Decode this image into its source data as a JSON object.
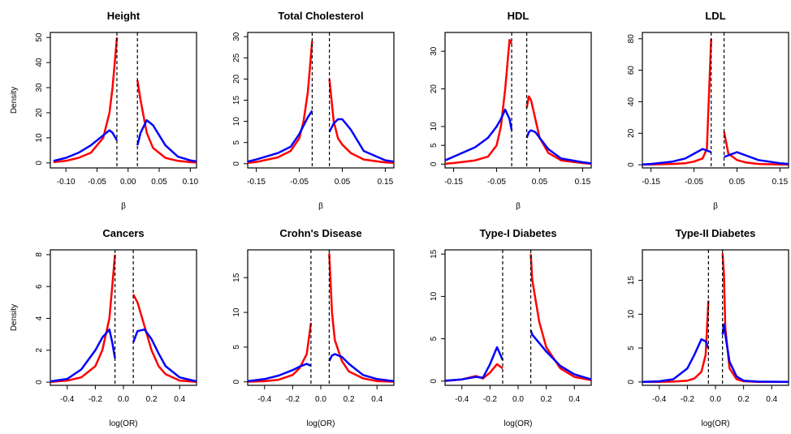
{
  "chart_data": [
    {
      "type": "line",
      "title": "Height",
      "xlabel": "β",
      "ylabel": "Density",
      "x": [
        -0.12,
        -0.1,
        -0.08,
        -0.06,
        -0.04,
        -0.03,
        -0.025,
        -0.018,
        0,
        0.015,
        0.02,
        0.03,
        0.04,
        0.06,
        0.08,
        0.1,
        0.11
      ],
      "series": [
        {
          "color": "#ff0000",
          "values": [
            0.3,
            0.8,
            2,
            4,
            10,
            20,
            30,
            50,
            null,
            33,
            25,
            12,
            6,
            2,
            0.8,
            0.3,
            0.2
          ]
        },
        {
          "color": "#0000ff",
          "values": [
            0.8,
            2,
            4,
            7,
            11,
            13,
            12,
            9,
            null,
            7,
            12,
            17,
            15,
            7,
            2.5,
            1,
            0.6
          ]
        }
      ],
      "xlim": [
        -0.125,
        0.11
      ],
      "xticks": [
        {
          "value": -0.1,
          "label": "-0.10"
        },
        -0.05,
        {
          "value": 0,
          "label": "0.00"
        },
        0.05,
        {
          "value": 0.1,
          "label": "0.10"
        }
      ],
      "ylim": [
        -2,
        52
      ],
      "yticks": [
        0,
        10,
        20,
        30,
        40,
        50
      ],
      "vlines": [
        -0.018,
        0.015
      ]
    },
    {
      "type": "line",
      "title": "Total Cholesterol",
      "xlabel": "β",
      "x": [
        -0.17,
        -0.15,
        -0.1,
        -0.07,
        -0.05,
        -0.04,
        -0.03,
        -0.02,
        0,
        0.02,
        0.03,
        0.04,
        0.05,
        0.07,
        0.1,
        0.15,
        0.17
      ],
      "series": [
        {
          "color": "#ff0000",
          "values": [
            0.2,
            0.4,
            1.5,
            3,
            6,
            10,
            17,
            29,
            null,
            20,
            10,
            6,
            4.5,
            2.5,
            1,
            0.3,
            0.2
          ]
        },
        {
          "color": "#0000ff",
          "values": [
            0.5,
            1,
            2.5,
            4,
            7,
            9,
            11,
            12.5,
            null,
            7.5,
            9.5,
            10.5,
            10.5,
            8,
            3,
            0.8,
            0.5
          ]
        }
      ],
      "xlim": [
        -0.17,
        0.17
      ],
      "xticks": [
        -0.15,
        -0.05,
        0.05,
        0.15
      ],
      "ylim": [
        -1,
        31
      ],
      "yticks": [
        0,
        5,
        10,
        15,
        20,
        25,
        30
      ],
      "vlines": [
        -0.02,
        0.02
      ]
    },
    {
      "type": "line",
      "title": "HDL",
      "xlabel": "β",
      "x": [
        -0.17,
        -0.15,
        -0.1,
        -0.07,
        -0.05,
        -0.04,
        -0.03,
        -0.02,
        -0.015,
        0,
        0.02,
        0.025,
        0.03,
        0.04,
        0.05,
        0.07,
        0.1,
        0.15,
        0.17
      ],
      "series": [
        {
          "color": "#ff0000",
          "values": [
            0.1,
            0.3,
            1,
            2,
            5,
            10,
            20,
            33,
            32,
            null,
            15,
            18,
            17,
            12,
            7,
            3,
            1,
            0.3,
            0.1
          ]
        },
        {
          "color": "#0000ff",
          "values": [
            1,
            2,
            4.5,
            7,
            10,
            12,
            14.5,
            12,
            9,
            null,
            7,
            8.5,
            9,
            8.5,
            7,
            4,
            1.5,
            0.5,
            0.2
          ]
        }
      ],
      "xlim": [
        -0.17,
        0.17
      ],
      "xticks": [
        -0.15,
        -0.05,
        0.05,
        0.15
      ],
      "ylim": [
        -1,
        35
      ],
      "yticks": [
        0,
        5,
        10,
        20,
        30
      ],
      "vlines": [
        -0.015,
        0.02
      ]
    },
    {
      "type": "line",
      "title": "LDL",
      "xlabel": "β",
      "x": [
        -0.17,
        -0.15,
        -0.1,
        -0.07,
        -0.05,
        -0.03,
        -0.02,
        -0.01,
        0,
        0.02,
        0.03,
        0.05,
        0.07,
        0.1,
        0.15,
        0.17
      ],
      "series": [
        {
          "color": "#ff0000",
          "values": [
            0.1,
            0.2,
            0.5,
            1,
            2,
            4,
            10,
            80,
            null,
            21,
            7,
            3,
            1.5,
            0.5,
            0.2,
            0.1
          ]
        },
        {
          "color": "#0000ff",
          "values": [
            0.2,
            0.5,
            2,
            4,
            7,
            10,
            9,
            8,
            null,
            5,
            6,
            8,
            6,
            3,
            1,
            0.5
          ]
        }
      ],
      "xlim": [
        -0.17,
        0.17
      ],
      "xticks": [
        -0.15,
        -0.05,
        0.05,
        0.15
      ],
      "ylim": [
        -2,
        84
      ],
      "yticks": [
        0,
        20,
        40,
        60,
        80
      ],
      "vlines": [
        -0.01,
        0.02
      ]
    },
    {
      "type": "line",
      "title": "Cancers",
      "xlabel": "log(OR)",
      "ylabel": "Density",
      "x": [
        -0.52,
        -0.4,
        -0.3,
        -0.2,
        -0.15,
        -0.1,
        -0.08,
        -0.06,
        0,
        0.07,
        0.1,
        0.15,
        0.2,
        0.25,
        0.3,
        0.4,
        0.52
      ],
      "series": [
        {
          "color": "#ff0000",
          "values": [
            0.02,
            0.1,
            0.3,
            1,
            2,
            4,
            6,
            8,
            null,
            5.5,
            5,
            3.5,
            2,
            1,
            0.5,
            0.1,
            0.02
          ]
        },
        {
          "color": "#0000ff",
          "values": [
            0.05,
            0.2,
            0.8,
            2,
            2.8,
            3.3,
            2.5,
            1.5,
            null,
            2.5,
            3.2,
            3.3,
            2.7,
            1.8,
            1,
            0.3,
            0.05
          ]
        }
      ],
      "xlim": [
        -0.52,
        0.52
      ],
      "xticks": [
        -0.4,
        -0.2,
        {
          "value": 0,
          "label": "0.0"
        },
        0.2,
        0.4
      ],
      "ylim": [
        -0.2,
        8.3
      ],
      "yticks": [
        0,
        2,
        4,
        6,
        8
      ],
      "vlines": [
        -0.06,
        0.07
      ]
    },
    {
      "type": "line",
      "title": "Crohn's Disease",
      "xlabel": "log(OR)",
      "x": [
        -0.52,
        -0.4,
        -0.3,
        -0.2,
        -0.15,
        -0.1,
        -0.07,
        0,
        0.06,
        0.08,
        0.1,
        0.15,
        0.2,
        0.3,
        0.4,
        0.52
      ],
      "series": [
        {
          "color": "#ff0000",
          "values": [
            0.02,
            0.1,
            0.3,
            1,
            2,
            4,
            8.5,
            null,
            18.5,
            10,
            6,
            3,
            1.5,
            0.5,
            0.1,
            0.02
          ]
        },
        {
          "color": "#0000ff",
          "values": [
            0.1,
            0.4,
            0.9,
            1.7,
            2.2,
            2.6,
            2.3,
            null,
            3,
            3.8,
            4,
            3.6,
            2.6,
            1,
            0.4,
            0.1
          ]
        }
      ],
      "xlim": [
        -0.52,
        0.52
      ],
      "xticks": [
        -0.4,
        -0.2,
        {
          "value": 0,
          "label": "0.0"
        },
        0.2,
        0.4
      ],
      "ylim": [
        -0.5,
        19
      ],
      "yticks": [
        0,
        5,
        10,
        15
      ],
      "vlines": [
        -0.07,
        0.06
      ]
    },
    {
      "type": "line",
      "title": "Type-I Diabetes",
      "xlabel": "log(OR)",
      "x": [
        -0.52,
        -0.4,
        -0.3,
        -0.25,
        -0.2,
        -0.15,
        -0.11,
        0,
        0.09,
        0.1,
        0.15,
        0.2,
        0.3,
        0.4,
        0.52
      ],
      "series": [
        {
          "color": "#ff0000",
          "values": [
            0.02,
            0.2,
            0.6,
            0.3,
            1,
            2,
            1.5,
            null,
            15,
            12,
            7,
            4,
            1.5,
            0.5,
            0.1
          ]
        },
        {
          "color": "#0000ff",
          "values": [
            0.05,
            0.2,
            0.5,
            0.4,
            2,
            4,
            2.5,
            null,
            6,
            5.5,
            4.5,
            3.5,
            1.8,
            0.8,
            0.2
          ]
        }
      ],
      "xlim": [
        -0.52,
        0.52
      ],
      "xticks": [
        -0.4,
        -0.2,
        {
          "value": 0,
          "label": "0.0"
        },
        0.2,
        0.4
      ],
      "ylim": [
        -0.5,
        15.5
      ],
      "yticks": [
        0,
        5,
        10,
        15
      ],
      "vlines": [
        -0.11,
        0.09
      ]
    },
    {
      "type": "line",
      "title": "Type-II Diabetes",
      "xlabel": "log(OR)",
      "x": [
        -0.52,
        -0.4,
        -0.3,
        -0.2,
        -0.15,
        -0.1,
        -0.07,
        -0.05,
        0,
        0.05,
        0.06,
        0.07,
        0.1,
        0.15,
        0.2,
        0.3,
        0.52
      ],
      "series": [
        {
          "color": "#ff0000",
          "values": [
            0,
            0,
            0.05,
            0.2,
            0.5,
            1.5,
            4,
            12,
            null,
            19,
            16,
            8,
            2,
            0.4,
            0.1,
            0,
            0
          ]
        },
        {
          "color": "#0000ff",
          "values": [
            0.02,
            0.1,
            0.4,
            2,
            4,
            6.3,
            6,
            5,
            null,
            7,
            8.5,
            7,
            3,
            0.8,
            0.2,
            0.05,
            0
          ]
        }
      ],
      "xlim": [
        -0.52,
        0.52
      ],
      "xticks": [
        -0.4,
        -0.2,
        {
          "value": 0,
          "label": "0.0"
        },
        0.2,
        0.4
      ],
      "ylim": [
        -0.5,
        19.5
      ],
      "yticks": [
        0,
        5,
        10,
        15
      ],
      "vlines": [
        -0.05,
        0.05
      ]
    }
  ]
}
